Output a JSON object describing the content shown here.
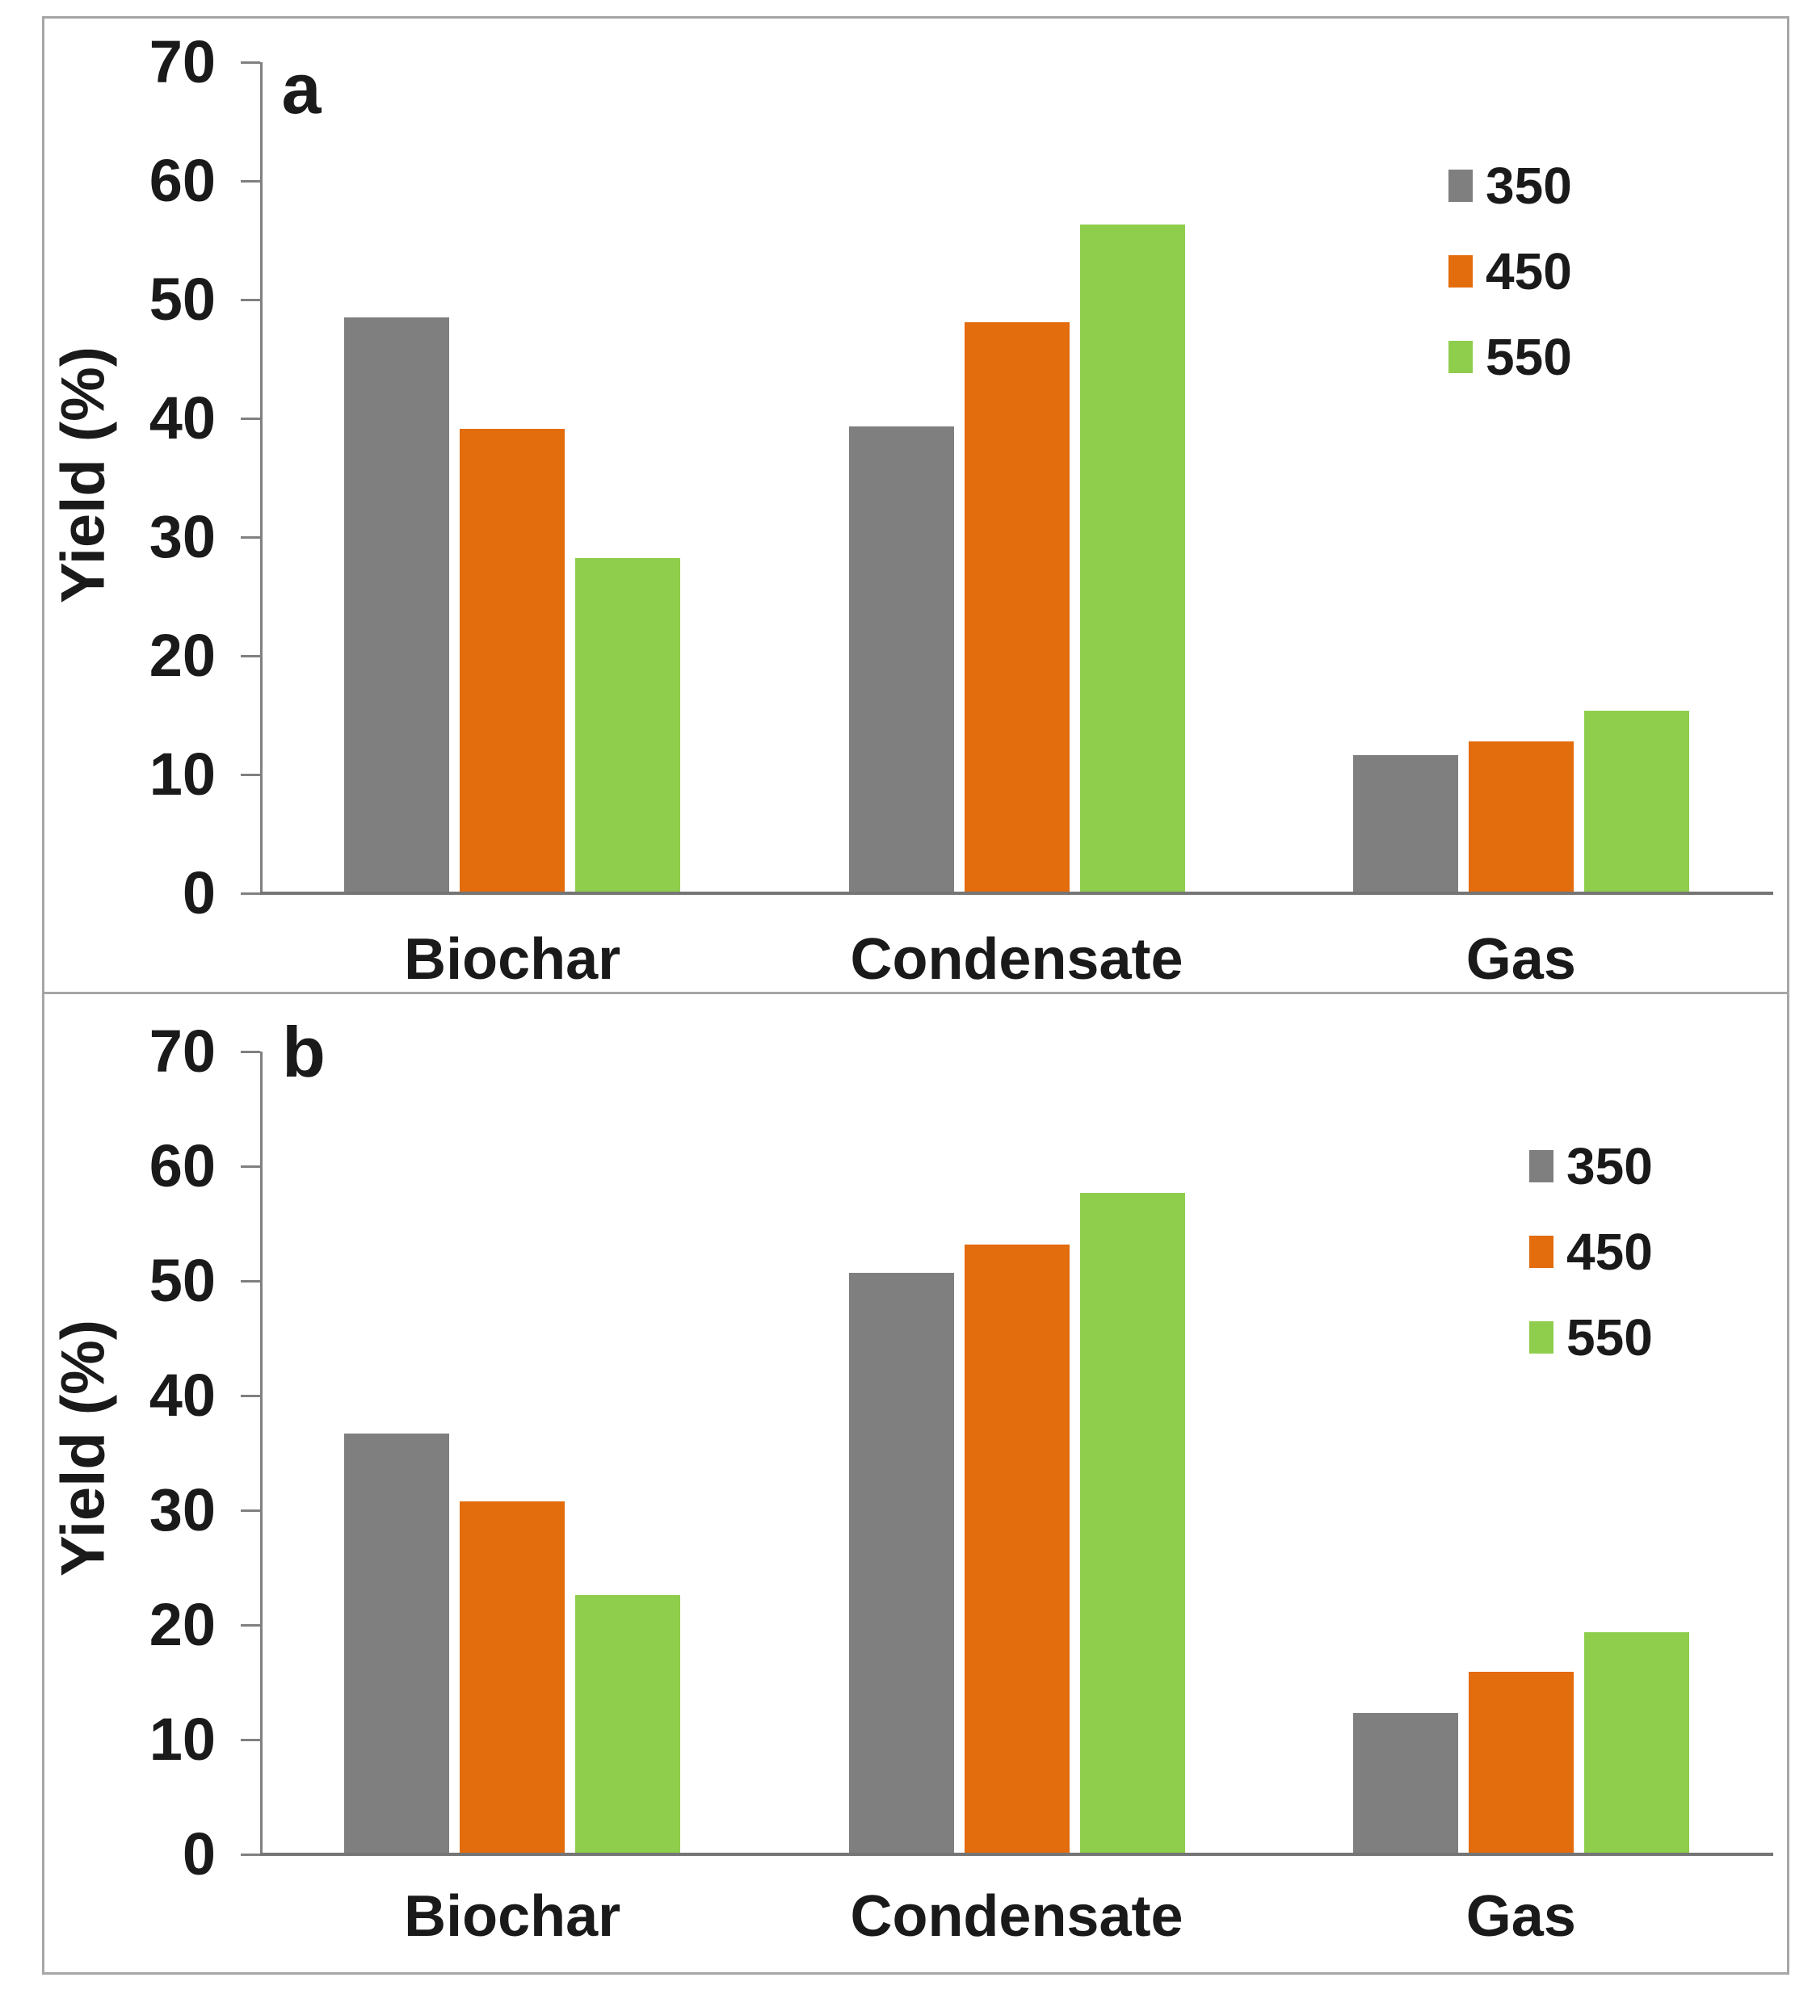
{
  "figure": {
    "background_color": "#ffffff",
    "panel_border_color": "#a6a6a6",
    "axis_color": "#808080",
    "text_color": "#1a1a1a"
  },
  "chart_data": [
    {
      "type": "bar",
      "panel_label": "a",
      "categories": [
        "Biochar",
        "Condensate",
        "Gas"
      ],
      "series": [
        {
          "name": "350",
          "color": "#7F7F7F",
          "values": [
            48.5,
            39.3,
            11.6
          ]
        },
        {
          "name": "450",
          "color": "#E36C0D",
          "values": [
            39.1,
            48.1,
            12.8
          ]
        },
        {
          "name": "550",
          "color": "#8FCE4D",
          "values": [
            28.2,
            56.3,
            15.4
          ]
        }
      ],
      "xlabel": "",
      "ylabel": "Yield (%)",
      "ylim": [
        0,
        70
      ],
      "ytick_step": 10,
      "legend_position": "upper right",
      "grid": false
    },
    {
      "type": "bar",
      "panel_label": "b",
      "categories": [
        "Biochar",
        "Condensate",
        "Gas"
      ],
      "series": [
        {
          "name": "350",
          "color": "#7F7F7F",
          "values": [
            36.7,
            50.7,
            12.3
          ]
        },
        {
          "name": "450",
          "color": "#E36C0D",
          "values": [
            30.8,
            53.2,
            15.9
          ]
        },
        {
          "name": "550",
          "color": "#8FCE4D",
          "values": [
            22.6,
            57.7,
            19.4
          ]
        }
      ],
      "xlabel": "",
      "ylabel": "Yield (%)",
      "ylim": [
        0,
        70
      ],
      "ytick_step": 10,
      "legend_position": "upper right",
      "grid": false
    }
  ]
}
